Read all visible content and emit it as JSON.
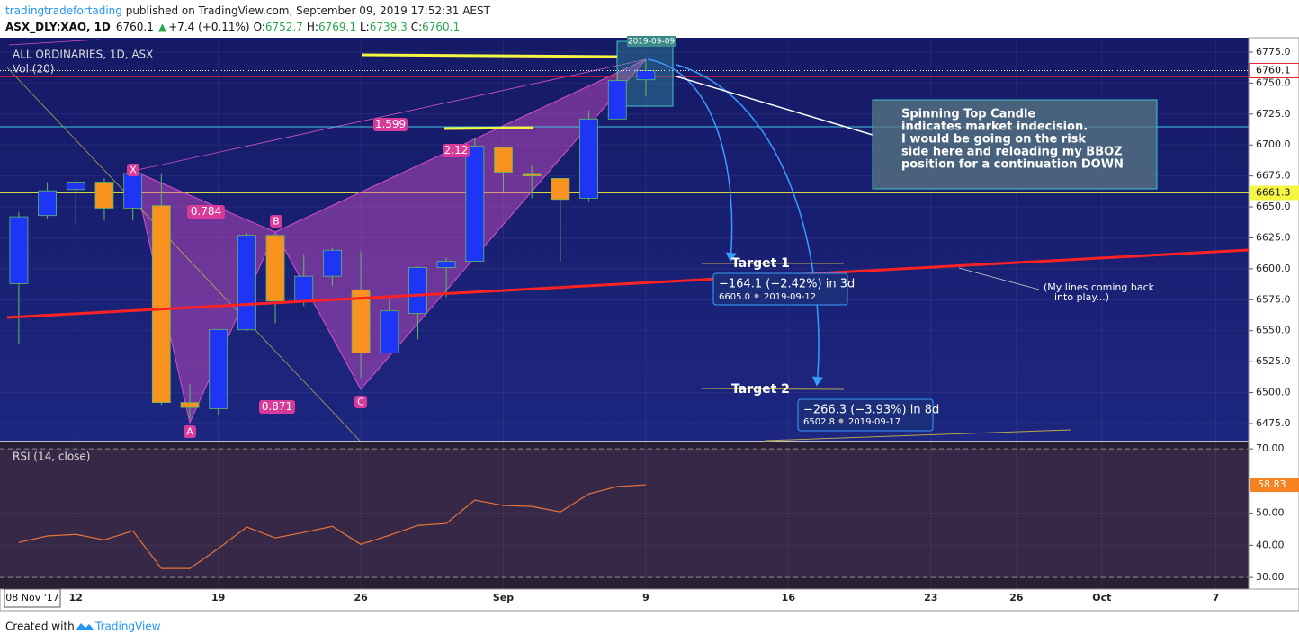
{
  "header": {
    "author": "tradingtradefortading",
    "published": " published on TradingView.com, September 09, 2019 17:52:31 AEST",
    "quote": [
      "ASX_DLY:XAO, 1D",
      "6760.1",
      "▲",
      "+7.4 (+0.11%)",
      "O:",
      "6752.7",
      "H:",
      "6769.1",
      "L:",
      "6739.3",
      "C:",
      "6760.1"
    ]
  },
  "legend": {
    "symbol": "ALL ORDINARIES, 1D, ASX",
    "volume": "Vol (20)",
    "rsi": "RSI (14, close)"
  },
  "annotations": {
    "ratios": [
      "1.599",
      "0.784",
      "0.871",
      "2.12"
    ],
    "points": [
      "X",
      "A",
      "B",
      "C"
    ],
    "date_box": "2019-09-09",
    "callout": [
      "Spinning Top Candle",
      "indicates market indecision.",
      "I would be going on the risk",
      "side here and reloading my BBOZ",
      "position for a continuation DOWN"
    ],
    "note": [
      "(My lines coming back",
      "into play...)"
    ],
    "targets": [
      {
        "name": "Target 1",
        "change": "−164.1 (−2.42%) in 3d",
        "price": "6605.0",
        "date": "2019-09-12"
      },
      {
        "name": "Target 2",
        "change": "−266.3 (−3.93%) in 8d",
        "price": "6502.8",
        "date": "2019-09-17"
      }
    ],
    "crosshair_date": "08 Nov '17"
  },
  "footer": {
    "created": "Created with",
    "brand": "TradingView"
  },
  "chart_data": [
    {
      "type": "candlestick",
      "x": [
        0,
        1,
        2,
        3,
        4,
        5,
        6,
        7,
        8,
        9,
        10,
        11,
        12,
        13,
        14,
        15,
        16,
        17,
        18,
        19,
        20,
        21,
        22
      ],
      "open": [
        6588,
        6643,
        6664,
        6670,
        6649,
        6651,
        6492,
        6487,
        6551,
        6627,
        6574,
        6594,
        6583,
        6532,
        6564,
        6601,
        6606,
        6698,
        6677,
        6673,
        6657,
        6721,
        6752.7
      ],
      "high": [
        6646,
        6670,
        6672,
        6673,
        6683,
        6677,
        6507,
        6551,
        6629,
        6628,
        6612,
        6617,
        6614,
        6575,
        6602,
        6609,
        6706,
        6698,
        6684,
        6673,
        6728,
        6758,
        6769.1
      ],
      "low": [
        6539,
        6640,
        6636,
        6639,
        6639,
        6490,
        6479,
        6482,
        6550,
        6556,
        6570,
        6586,
        6512,
        6532,
        6543,
        6577,
        6606,
        6662,
        6657,
        6606,
        6654,
        6721,
        6739.3
      ],
      "close": [
        6642,
        6663,
        6670,
        6649,
        6677,
        6492,
        6488,
        6551,
        6627,
        6574,
        6594,
        6615,
        6532,
        6566,
        6601,
        6606,
        6699,
        6678,
        6675,
        6656,
        6721,
        6752,
        6760.1
      ],
      "up_color": "#1f35f5",
      "down_color": "#f7931e",
      "wick_color": "#5dbb63",
      "xlim": [
        -0.66,
        43.15
      ],
      "xticks": [
        {
          "value": 2,
          "label": "12"
        },
        {
          "value": 7,
          "label": "19"
        },
        {
          "value": 12,
          "label": "26"
        },
        {
          "value": 17,
          "label": "Sep"
        },
        {
          "value": 22,
          "label": "9"
        },
        {
          "value": 27,
          "label": "16"
        },
        {
          "value": 32,
          "label": "23"
        },
        {
          "value": 35,
          "label": "26"
        },
        {
          "value": 38,
          "label": "Oct"
        },
        {
          "value": 42,
          "label": "7"
        }
      ],
      "ylim": [
        6461.2,
        6786.6
      ],
      "yticks": [
        {
          "value": 6475,
          "label": "6475.0"
        },
        {
          "value": 6500,
          "label": "6500.0"
        },
        {
          "value": 6525,
          "label": "6525.0"
        },
        {
          "value": 6550,
          "label": "6550.0"
        },
        {
          "value": 6575,
          "label": "6575.0"
        },
        {
          "value": 6600,
          "label": "6600.0"
        },
        {
          "value": 6625,
          "label": "6625.0"
        },
        {
          "value": 6650,
          "label": "6650.0"
        },
        {
          "value": 6675,
          "label": "6675.0"
        },
        {
          "value": 6700,
          "label": "6700.0"
        },
        {
          "value": 6725,
          "label": "6725.0"
        },
        {
          "value": 6750,
          "label": "6750.0"
        },
        {
          "value": 6775,
          "label": "6775.0"
        }
      ],
      "grid": true,
      "last_price": 6760.1,
      "level": 6661.3
    },
    {
      "type": "line",
      "name": "RSI",
      "color": "#e8743b",
      "x": [
        0,
        1,
        2,
        3,
        4,
        5,
        6,
        7,
        8,
        9,
        10,
        11,
        12,
        13,
        14,
        15,
        16,
        17,
        18,
        19,
        20,
        21,
        22
      ],
      "values": [
        40.9,
        42.9,
        43.4,
        41.7,
        44.5,
        32.8,
        32.8,
        39,
        45.7,
        42.3,
        44,
        45.9,
        40.3,
        43.1,
        46.2,
        46.8,
        54.1,
        52.4,
        52.1,
        50.4,
        56,
        58.3,
        58.83
      ],
      "xlim": [
        -0.66,
        43.15
      ],
      "ylim": [
        26.4,
        72
      ],
      "yticks": [
        {
          "value": 30,
          "label": "30.00"
        },
        {
          "value": 40,
          "label": "40.00"
        },
        {
          "value": 50,
          "label": "50.00"
        },
        {
          "value": 70,
          "label": "70.00"
        }
      ],
      "band": [
        30,
        70
      ],
      "grid": true
    }
  ]
}
